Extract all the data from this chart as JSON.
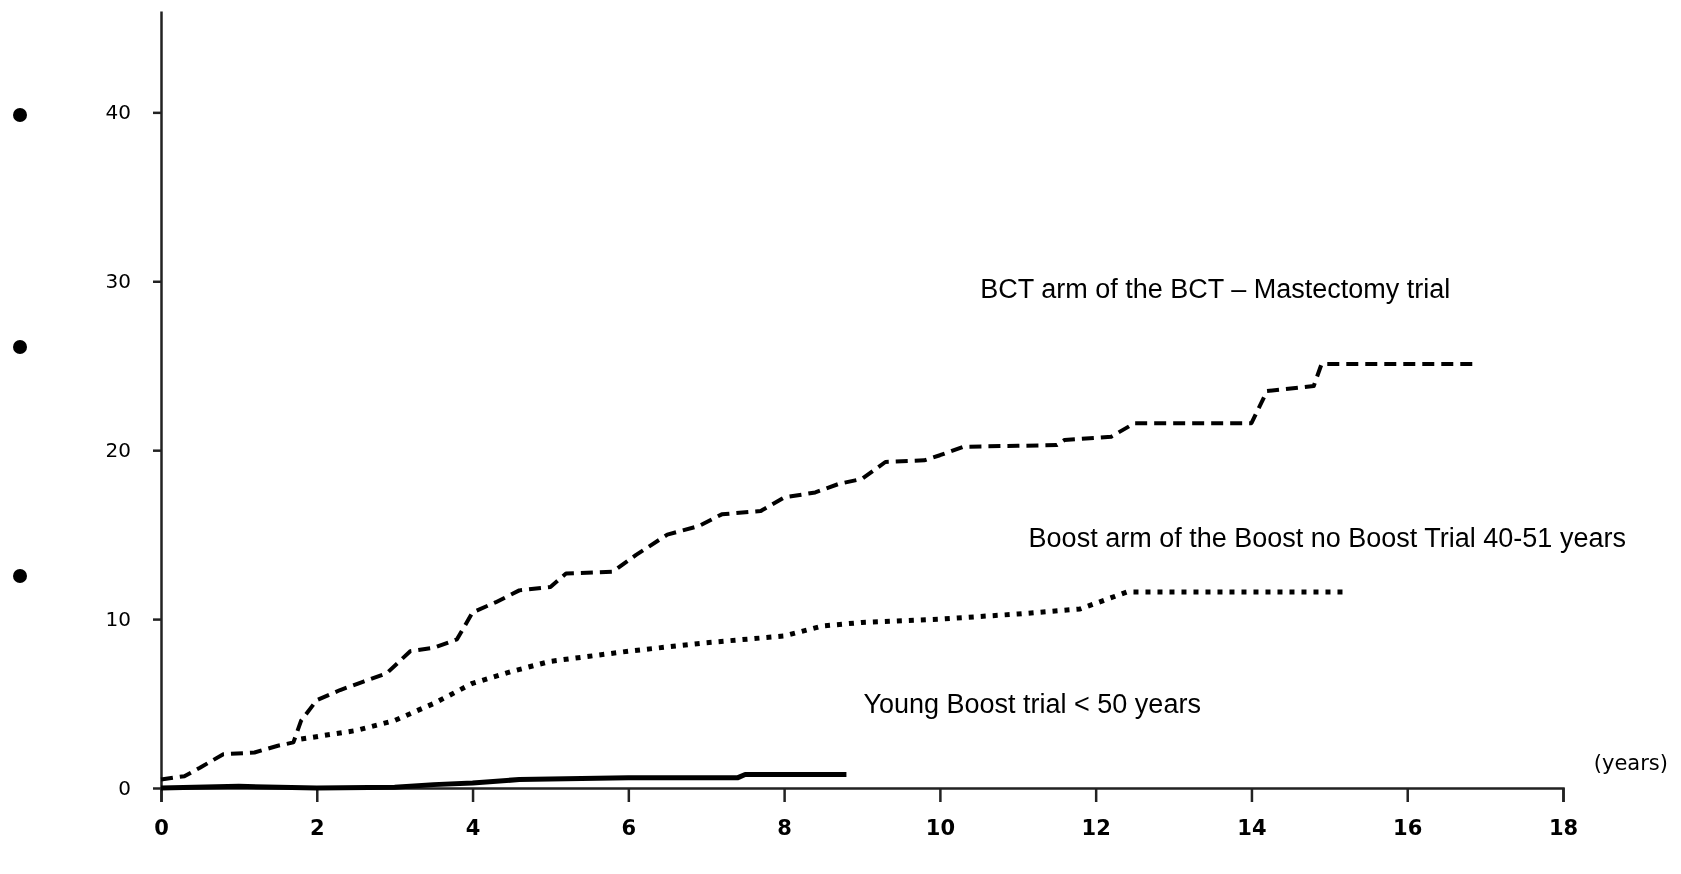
{
  "chart_data": {
    "type": "line",
    "xlabel": "(years)",
    "xlim": [
      0,
      18
    ],
    "xticks": [
      0,
      2,
      4,
      6,
      8,
      10,
      12,
      14,
      16,
      18
    ],
    "ylim": [
      0,
      46
    ],
    "yticks": [
      0,
      10,
      20,
      30,
      40
    ],
    "grid": false,
    "marker": "none",
    "series": [
      {
        "name": "BCT arm of the BCT – Mastectomy trial",
        "color": "#000000",
        "line_style": "dashed",
        "x": [
          0,
          0.3,
          0.5,
          0.8,
          1.2,
          1.5,
          1.7,
          1.8,
          2.0,
          2.3,
          2.6,
          2.9,
          3.2,
          3.5,
          3.8,
          4.0,
          4.3,
          4.6,
          5.0,
          5.2,
          5.8,
          6.1,
          6.5,
          6.9,
          7.2,
          7.7,
          8.0,
          8.4,
          8.7,
          9.0,
          9.3,
          9.8,
          10.0,
          10.3,
          11.5,
          11.6,
          12.2,
          12.5,
          14.0,
          14.2,
          14.8,
          14.9,
          16.9
        ],
        "values": [
          0.5,
          0.7,
          1.2,
          2.0,
          2.1,
          2.5,
          2.7,
          4.0,
          5.2,
          5.8,
          6.3,
          6.8,
          8.1,
          8.3,
          8.8,
          10.4,
          11.0,
          11.7,
          11.9,
          12.7,
          12.8,
          13.8,
          15.0,
          15.5,
          16.2,
          16.4,
          17.2,
          17.5,
          18.0,
          18.3,
          19.3,
          19.4,
          19.7,
          20.2,
          20.3,
          20.6,
          20.8,
          21.6,
          21.6,
          23.5,
          23.8,
          25.1,
          25.1
        ]
      },
      {
        "name": "Boost arm of the Boost no Boost Trial 40-51 years",
        "color": "#000000",
        "line_style": "dotted",
        "x": [
          1.8,
          2.5,
          3.0,
          3.5,
          4.0,
          4.5,
          5.0,
          5.5,
          6.0,
          7.0,
          8.0,
          8.5,
          9.0,
          10.0,
          11.0,
          11.8,
          12.4,
          15.2
        ],
        "values": [
          2.9,
          3.4,
          4.0,
          5.0,
          6.2,
          6.9,
          7.5,
          7.8,
          8.1,
          8.6,
          9.0,
          9.6,
          9.8,
          10.0,
          10.3,
          10.6,
          11.6,
          11.6
        ]
      },
      {
        "name": "Young Boost trial < 50 years",
        "color": "#000000",
        "line_style": "solid",
        "x": [
          0,
          1,
          2,
          3,
          3.5,
          4,
          4.6,
          6,
          7.4,
          7.5,
          8.8
        ],
        "values": [
          0,
          0.1,
          0,
          0.05,
          0.2,
          0.3,
          0.5,
          0.6,
          0.6,
          0.8,
          0.8
        ]
      }
    ]
  }
}
